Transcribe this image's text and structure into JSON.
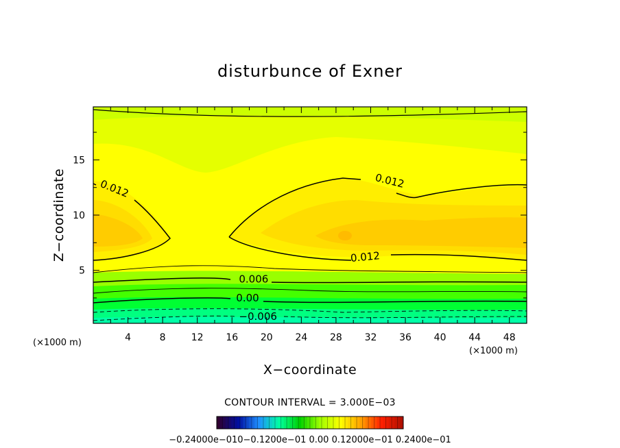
{
  "chart_data": {
    "type": "contour",
    "title": "disturbunce of Exner",
    "xlabel": "X−coordinate",
    "ylabel": "Z−coordinate",
    "x_unit_label": "(×1000 m)",
    "y_unit_label": "(×1000 m)",
    "xlim": [
      0,
      50
    ],
    "ylim": [
      0.2,
      19.8
    ],
    "x_ticks": [
      4,
      8,
      12,
      16,
      20,
      24,
      28,
      32,
      36,
      40,
      44,
      48
    ],
    "y_ticks": [
      5,
      10,
      15
    ],
    "contour_interval_text": "CONTOUR INTERVAL = 3.000E−03",
    "contour_interval": 0.003,
    "contour_labels": [
      {
        "text": "0.012",
        "x": 2.3,
        "z": 12.1
      },
      {
        "text": "0.012",
        "x": 34.1,
        "z": 12.8
      },
      {
        "text": "0.012",
        "x": 31.4,
        "z": 5.9
      },
      {
        "text": "0.006",
        "x": 18.5,
        "z": 3.9
      },
      {
        "text": "0.00",
        "x": 17.8,
        "z": 2.2
      },
      {
        "text": "−0.006",
        "x": 19.0,
        "z": 0.5
      }
    ],
    "colorbar": {
      "label_text": "−0.24000e−010−0.1200e−01 0.00 0.12000e−01 0.2400e−01",
      "min": -0.024,
      "max": 0.024,
      "colors": [
        "#300030",
        "#0010a0",
        "#2090ff",
        "#00ffa0",
        "#00d000",
        "#a0ff00",
        "#ffff00",
        "#ffa000",
        "#ff2000",
        "#b01000"
      ]
    },
    "field_colors": {
      "deep_orange": "#ffcc00",
      "orange": "#ffdd00",
      "yellow": "#ffee00",
      "pale_yellow": "#ffff00",
      "lime": "#e5ff00",
      "yellow_green": "#ccff00",
      "light_green": "#99ff00",
      "green": "#44ff00",
      "bright_green": "#00ff33",
      "sea_green": "#00ff80",
      "teal": "#00ffa8"
    }
  }
}
